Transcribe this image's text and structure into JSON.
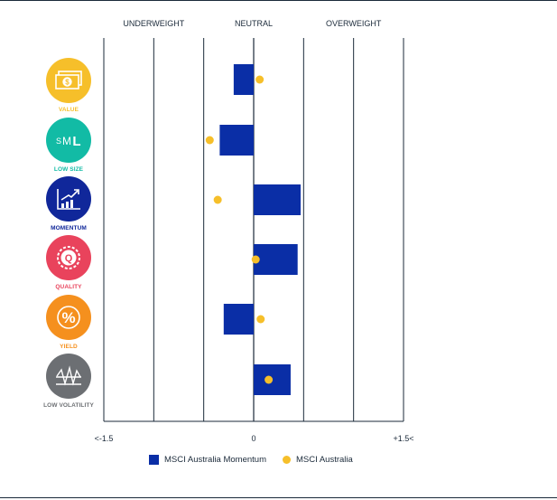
{
  "chart_data": {
    "type": "bar",
    "orientation": "horizontal",
    "column_headers": [
      "UNDERWEIGHT",
      "NEUTRAL",
      "OVERWEIGHT"
    ],
    "x_tick_labels": [
      "<-1.5",
      "0",
      "+1.5<"
    ],
    "xlim": [
      -1.5,
      1.5
    ],
    "categories": [
      "VALUE",
      "LOW SIZE",
      "MOMENTUM",
      "QUALITY",
      "YIELD",
      "LOW VOLATILITY"
    ],
    "series": [
      {
        "name": "MSCI Australia Momentum",
        "kind": "bar",
        "color": "#0a2ea6",
        "values": [
          -0.2,
          -0.34,
          0.47,
          0.44,
          -0.3,
          0.37
        ]
      },
      {
        "name": "MSCI Australia",
        "kind": "dot",
        "color": "#f6bf2a",
        "values": [
          0.06,
          -0.44,
          -0.36,
          0.02,
          0.07,
          0.15
        ]
      }
    ],
    "grid": true
  },
  "factors": [
    {
      "label": "VALUE",
      "color": "#f6bf2a",
      "label_color": "#f6bf2a",
      "icon": "dollar-bill-icon"
    },
    {
      "label": "LOW SIZE",
      "color": "#12bba5",
      "label_color": "#12bba5",
      "icon": "sml-icon"
    },
    {
      "label": "MOMENTUM",
      "color": "#10279a",
      "label_color": "#10279a",
      "icon": "trend-arrow-icon"
    },
    {
      "label": "QUALITY",
      "color": "#e9435c",
      "label_color": "#e9435c",
      "icon": "quality-seal-icon"
    },
    {
      "label": "YIELD",
      "color": "#f5901e",
      "label_color": "#f5901e",
      "icon": "percent-icon"
    },
    {
      "label": "LOW VOLATILITY",
      "color": "#6c6f73",
      "label_color": "#6c6f73",
      "icon": "volatility-line-icon"
    }
  ],
  "icon_text": {
    "sml_s": "S",
    "sml_m": "M",
    "sml_l": "L",
    "dollar": "$",
    "percent": "%",
    "quality": "Q"
  }
}
